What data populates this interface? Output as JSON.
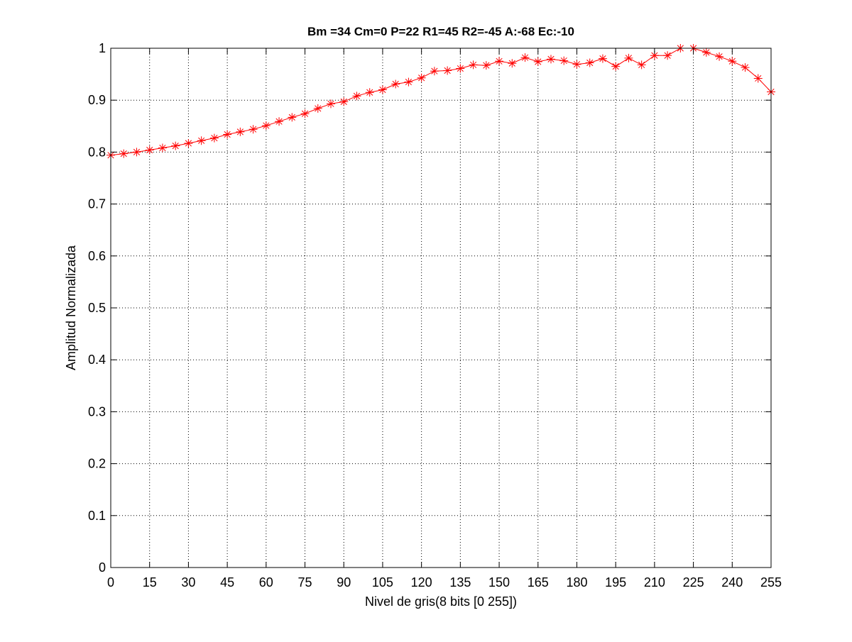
{
  "chart_data": {
    "type": "line",
    "title": "Bm =34  Cm=0  P=22  R1=45  R2=-45  A:-68  Ec:-10",
    "xlabel": "Nivel de gris(8 bits [0 255])",
    "ylabel": "Amplitud Normalizada",
    "xlim": [
      0,
      255
    ],
    "ylim": [
      0,
      1
    ],
    "grid": true,
    "x_ticks": [
      "0",
      "15",
      "30",
      "45",
      "60",
      "75",
      "90",
      "105",
      "120",
      "135",
      "150",
      "165",
      "180",
      "195",
      "210",
      "225",
      "240",
      "255"
    ],
    "y_ticks": [
      "0",
      "0.1",
      "0.2",
      "0.3",
      "0.4",
      "0.5",
      "0.6",
      "0.7",
      "0.8",
      "0.9",
      "1"
    ],
    "series": [
      {
        "color": "#ff0000",
        "marker": "asterisk",
        "x": [
          0,
          5,
          10,
          15,
          20,
          25,
          30,
          35,
          40,
          45,
          50,
          55,
          60,
          65,
          70,
          75,
          80,
          85,
          90,
          95,
          100,
          105,
          110,
          115,
          120,
          125,
          130,
          135,
          140,
          145,
          150,
          155,
          160,
          165,
          170,
          175,
          180,
          185,
          190,
          195,
          200,
          205,
          210,
          215,
          220,
          225,
          230,
          235,
          240,
          245,
          250,
          255
        ],
        "y": [
          0.794,
          0.797,
          0.8,
          0.804,
          0.808,
          0.812,
          0.817,
          0.822,
          0.827,
          0.834,
          0.839,
          0.844,
          0.851,
          0.859,
          0.867,
          0.874,
          0.884,
          0.893,
          0.897,
          0.908,
          0.915,
          0.92,
          0.931,
          0.935,
          0.943,
          0.956,
          0.957,
          0.961,
          0.968,
          0.967,
          0.975,
          0.971,
          0.982,
          0.974,
          0.979,
          0.976,
          0.969,
          0.972,
          0.98,
          0.965,
          0.981,
          0.968,
          0.986,
          0.986,
          1.0,
          1.0,
          0.992,
          0.984,
          0.975,
          0.963,
          0.942,
          0.916
        ]
      }
    ]
  }
}
